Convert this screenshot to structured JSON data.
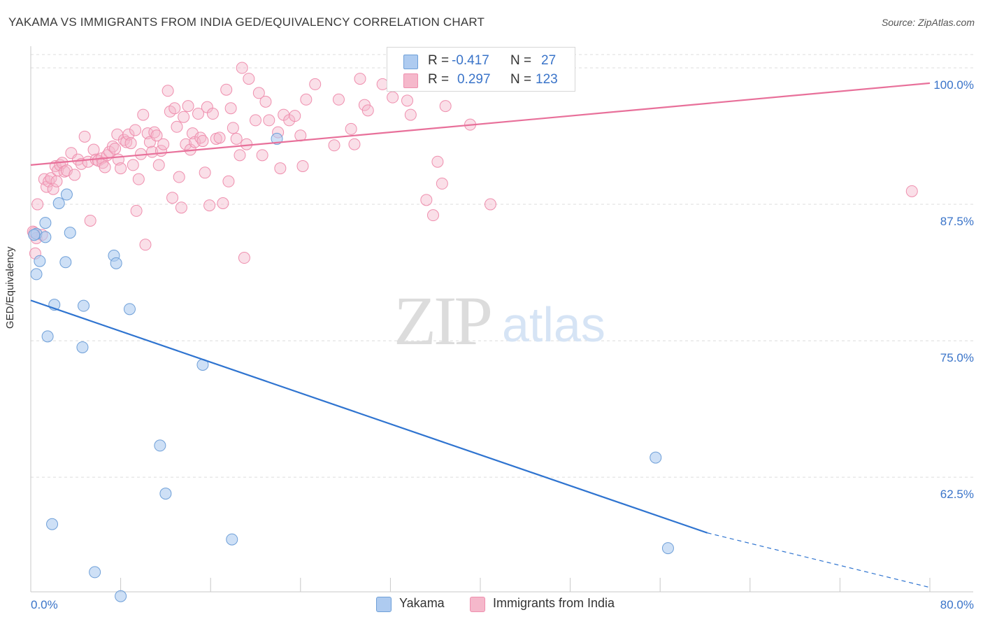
{
  "header": {
    "title": "YAKAMA VS IMMIGRANTS FROM INDIA GED/EQUIVALENCY CORRELATION CHART",
    "source": "Source: ZipAtlas.com"
  },
  "watermark": {
    "zip": "ZIP",
    "atlas": "atlas"
  },
  "stats": {
    "r_label": "R =",
    "n_label": "N =",
    "yakama": {
      "r": "-0.417",
      "n": "27"
    },
    "india": {
      "r": "0.297",
      "n": "123"
    }
  },
  "legend": {
    "yakama": "Yakama",
    "india": "Immigrants from India"
  },
  "colors": {
    "yakama_fill": "#aecbf0",
    "yakama_stroke": "#6e9fd8",
    "yakama_line": "#2f74d0",
    "india_fill": "#f5b8cb",
    "india_stroke": "#ef8fae",
    "india_line": "#e8709a",
    "grid": "#dcdcdc",
    "tick_label": "#3a74c9"
  },
  "chart_data": {
    "type": "scatter",
    "title": "YAKAMA VS IMMIGRANTS FROM INDIA GED/EQUIVALENCY CORRELATION CHART",
    "xlabel": "",
    "ylabel": "GED/Equivalency",
    "xlim": [
      0,
      80
    ],
    "ylim": [
      52,
      102.5
    ],
    "x_tick_labels": [
      "0.0%",
      "80.0%"
    ],
    "y_ticks": [
      62.5,
      75.0,
      87.5,
      100.0
    ],
    "y_tick_labels": [
      "62.5%",
      "75.0%",
      "87.5%",
      "100.0%"
    ],
    "grid": true,
    "series": [
      {
        "name": "Yakama",
        "r": -0.417,
        "n": 27,
        "trend": {
          "x": [
            0,
            60.2
          ],
          "y": [
            78.7,
            57.4
          ],
          "dashed_to": [
            80,
            52.4
          ]
        },
        "points": [
          [
            0.5,
            84.8
          ],
          [
            0.5,
            81.1
          ],
          [
            0.8,
            82.3
          ],
          [
            1.3,
            84.5
          ],
          [
            1.3,
            85.8
          ],
          [
            1.5,
            75.4
          ],
          [
            1.9,
            58.2
          ],
          [
            2.1,
            78.3
          ],
          [
            2.5,
            87.6
          ],
          [
            3.1,
            82.2
          ],
          [
            3.2,
            88.4
          ],
          [
            3.5,
            84.9
          ],
          [
            4.6,
            74.4
          ],
          [
            4.7,
            78.2
          ],
          [
            5.7,
            53.8
          ],
          [
            7.4,
            82.8
          ],
          [
            7.6,
            82.1
          ],
          [
            8.0,
            51.6
          ],
          [
            8.8,
            77.9
          ],
          [
            11.5,
            65.4
          ],
          [
            12.0,
            61.0
          ],
          [
            15.3,
            72.8
          ],
          [
            17.9,
            56.8
          ],
          [
            21.9,
            93.5
          ],
          [
            55.6,
            64.3
          ],
          [
            56.7,
            56.0
          ],
          [
            0.3,
            84.7
          ]
        ]
      },
      {
        "name": "Immigrants from India",
        "r": 0.297,
        "n": 123,
        "trend": {
          "x": [
            0,
            80
          ],
          "y": [
            91.1,
            98.6
          ]
        },
        "points": [
          [
            0.3,
            84.9
          ],
          [
            0.4,
            83.0
          ],
          [
            0.6,
            87.5
          ],
          [
            1.0,
            84.7
          ],
          [
            1.2,
            89.8
          ],
          [
            1.4,
            89.1
          ],
          [
            1.6,
            89.6
          ],
          [
            1.8,
            89.9
          ],
          [
            2.0,
            88.9
          ],
          [
            2.2,
            91.0
          ],
          [
            2.4,
            90.6
          ],
          [
            2.6,
            91.1
          ],
          [
            2.8,
            91.3
          ],
          [
            3.0,
            90.5
          ],
          [
            3.2,
            90.6
          ],
          [
            3.6,
            92.2
          ],
          [
            3.9,
            90.2
          ],
          [
            4.2,
            91.6
          ],
          [
            4.5,
            91.2
          ],
          [
            4.8,
            93.7
          ],
          [
            5.1,
            91.4
          ],
          [
            5.3,
            86.0
          ],
          [
            5.6,
            92.5
          ],
          [
            5.8,
            91.6
          ],
          [
            6.0,
            91.5
          ],
          [
            6.3,
            91.7
          ],
          [
            6.4,
            91.3
          ],
          [
            6.6,
            90.9
          ],
          [
            6.8,
            92.0
          ],
          [
            7.0,
            92.3
          ],
          [
            7.3,
            92.8
          ],
          [
            7.5,
            92.6
          ],
          [
            7.7,
            93.9
          ],
          [
            7.8,
            91.6
          ],
          [
            8.0,
            90.8
          ],
          [
            8.3,
            93.4
          ],
          [
            8.5,
            93.2
          ],
          [
            8.7,
            93.9
          ],
          [
            8.9,
            93.1
          ],
          [
            9.1,
            91.1
          ],
          [
            9.3,
            94.3
          ],
          [
            9.4,
            86.9
          ],
          [
            9.6,
            89.8
          ],
          [
            9.8,
            92.1
          ],
          [
            10.0,
            95.7
          ],
          [
            10.2,
            83.8
          ],
          [
            10.4,
            94.0
          ],
          [
            10.6,
            93.2
          ],
          [
            10.8,
            92.3
          ],
          [
            11.0,
            94.1
          ],
          [
            11.2,
            93.8
          ],
          [
            11.4,
            91.1
          ],
          [
            11.6,
            92.4
          ],
          [
            11.8,
            93.0
          ],
          [
            12.2,
            97.9
          ],
          [
            12.4,
            96.0
          ],
          [
            12.6,
            88.1
          ],
          [
            12.8,
            96.3
          ],
          [
            13.0,
            94.6
          ],
          [
            13.2,
            90.0
          ],
          [
            13.4,
            87.2
          ],
          [
            13.6,
            95.5
          ],
          [
            13.8,
            93.0
          ],
          [
            14.0,
            96.5
          ],
          [
            14.2,
            92.5
          ],
          [
            14.4,
            94.0
          ],
          [
            14.6,
            93.2
          ],
          [
            14.9,
            95.8
          ],
          [
            15.1,
            93.6
          ],
          [
            15.3,
            93.3
          ],
          [
            15.5,
            90.4
          ],
          [
            15.7,
            96.4
          ],
          [
            15.9,
            87.4
          ],
          [
            16.2,
            95.8
          ],
          [
            16.5,
            93.5
          ],
          [
            16.8,
            93.6
          ],
          [
            17.1,
            87.6
          ],
          [
            17.4,
            98.0
          ],
          [
            17.6,
            89.6
          ],
          [
            17.8,
            96.3
          ],
          [
            18.0,
            94.5
          ],
          [
            18.3,
            93.5
          ],
          [
            18.6,
            92.0
          ],
          [
            18.8,
            100.0
          ],
          [
            19.0,
            82.6
          ],
          [
            19.2,
            93.0
          ],
          [
            19.4,
            99.0
          ],
          [
            20.0,
            95.2
          ],
          [
            20.3,
            97.7
          ],
          [
            20.6,
            92.0
          ],
          [
            20.9,
            96.9
          ],
          [
            21.2,
            95.2
          ],
          [
            22.0,
            94.1
          ],
          [
            22.2,
            90.8
          ],
          [
            22.5,
            95.7
          ],
          [
            23.0,
            95.2
          ],
          [
            23.5,
            95.6
          ],
          [
            24.0,
            93.8
          ],
          [
            24.5,
            97.1
          ],
          [
            24.2,
            91.0
          ],
          [
            25.3,
            98.5
          ],
          [
            27.0,
            92.9
          ],
          [
            27.4,
            97.1
          ],
          [
            28.5,
            94.4
          ],
          [
            28.8,
            93.0
          ],
          [
            29.3,
            99.0
          ],
          [
            29.7,
            96.6
          ],
          [
            30.0,
            96.1
          ],
          [
            31.3,
            98.5
          ],
          [
            32.2,
            97.3
          ],
          [
            33.5,
            97.0
          ],
          [
            33.8,
            95.7
          ],
          [
            35.2,
            87.9
          ],
          [
            35.8,
            86.5
          ],
          [
            36.2,
            91.4
          ],
          [
            36.6,
            89.4
          ],
          [
            36.9,
            96.5
          ],
          [
            39.1,
            94.8
          ],
          [
            40.9,
            87.5
          ],
          [
            78.4,
            88.7
          ],
          [
            0.2,
            85.0
          ],
          [
            0.5,
            84.4
          ],
          [
            2.3,
            89.6
          ]
        ]
      }
    ]
  }
}
